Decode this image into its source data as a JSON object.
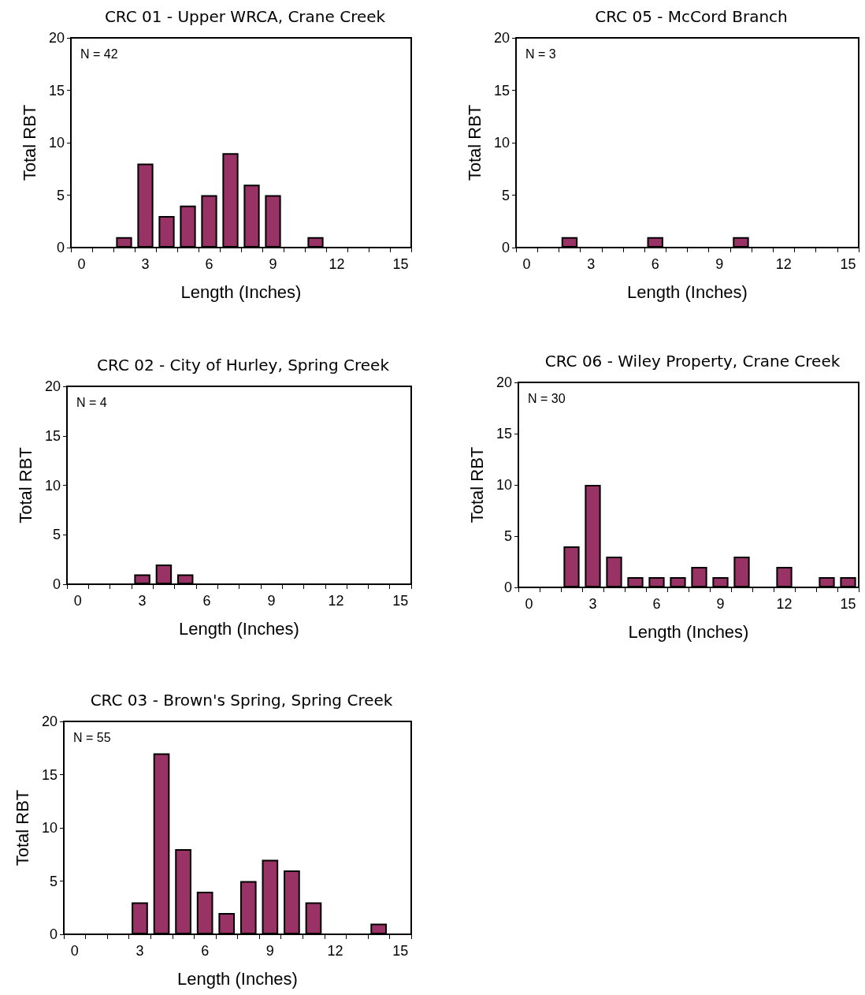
{
  "chart_data": [
    {
      "type": "bar",
      "title": "CRC 01 - Upper WRCA, Crane Creek",
      "xlabel": "Length (Inches)",
      "ylabel": "Total RBT",
      "annotations": [
        "N = 42"
      ],
      "categories": [
        "0",
        null,
        null,
        "3",
        null,
        null,
        "6",
        null,
        null,
        "9",
        null,
        null,
        "12",
        null,
        null,
        "15"
      ],
      "values": [
        0,
        0,
        1,
        8,
        3,
        4,
        5,
        9,
        6,
        5,
        0,
        1,
        0,
        0,
        0,
        0
      ],
      "color": "#993366",
      "ylim": [
        0,
        20
      ],
      "yticks": [
        0,
        5,
        10,
        15,
        20
      ]
    },
    {
      "type": "bar",
      "title": "CRC 05 - McCord Branch",
      "xlabel": "Length (Inches)",
      "ylabel": "Total RBT",
      "annotations": [
        "N = 3"
      ],
      "categories": [
        "0",
        null,
        null,
        "3",
        null,
        null,
        "6",
        null,
        null,
        "9",
        null,
        null,
        "12",
        null,
        null,
        "15"
      ],
      "values": [
        0,
        0,
        1,
        0,
        0,
        0,
        1,
        0,
        0,
        0,
        1,
        0,
        0,
        0,
        0,
        0
      ],
      "color": "#993366",
      "ylim": [
        0,
        20
      ],
      "yticks": [
        0,
        5,
        10,
        15,
        20
      ]
    },
    {
      "type": "bar",
      "title": "CRC 02 - City of Hurley, Spring Creek",
      "xlabel": "Length (Inches)",
      "ylabel": "Total RBT",
      "annotations": [
        "N = 4"
      ],
      "categories": [
        "0",
        null,
        null,
        "3",
        null,
        null,
        "6",
        null,
        null,
        "9",
        null,
        null,
        "12",
        null,
        null,
        "15"
      ],
      "values": [
        0,
        0,
        0,
        1,
        2,
        1,
        0,
        0,
        0,
        0,
        0,
        0,
        0,
        0,
        0,
        0
      ],
      "color": "#993366",
      "ylim": [
        0,
        20
      ],
      "yticks": [
        0,
        5,
        10,
        15,
        20
      ]
    },
    {
      "type": "bar",
      "title": "CRC 06 - Wiley Property, Crane Creek",
      "xlabel": "Length (Inches)",
      "ylabel": "Total RBT",
      "annotations": [
        "N = 30"
      ],
      "categories": [
        "0",
        null,
        null,
        "3",
        null,
        null,
        "6",
        null,
        null,
        "9",
        null,
        null,
        "12",
        null,
        null,
        "15"
      ],
      "values": [
        0,
        0,
        4,
        10,
        3,
        1,
        1,
        1,
        2,
        1,
        3,
        0,
        2,
        0,
        1,
        1
      ],
      "color": "#993366",
      "ylim": [
        0,
        20
      ],
      "yticks": [
        0,
        5,
        10,
        15,
        20
      ]
    },
    {
      "type": "bar",
      "title": "CRC 03 - Brown's Spring, Spring Creek",
      "xlabel": "Length (Inches)",
      "ylabel": "Total RBT",
      "annotations": [
        "N = 55"
      ],
      "categories": [
        "0",
        null,
        null,
        "3",
        null,
        null,
        "6",
        null,
        null,
        "9",
        null,
        null,
        "12",
        null,
        null,
        "15"
      ],
      "values": [
        0,
        0,
        0,
        3,
        17,
        8,
        4,
        2,
        5,
        7,
        6,
        3,
        0,
        0,
        1,
        0
      ],
      "color": "#993366",
      "ylim": [
        0,
        20
      ],
      "yticks": [
        0,
        5,
        10,
        15,
        20
      ]
    }
  ]
}
